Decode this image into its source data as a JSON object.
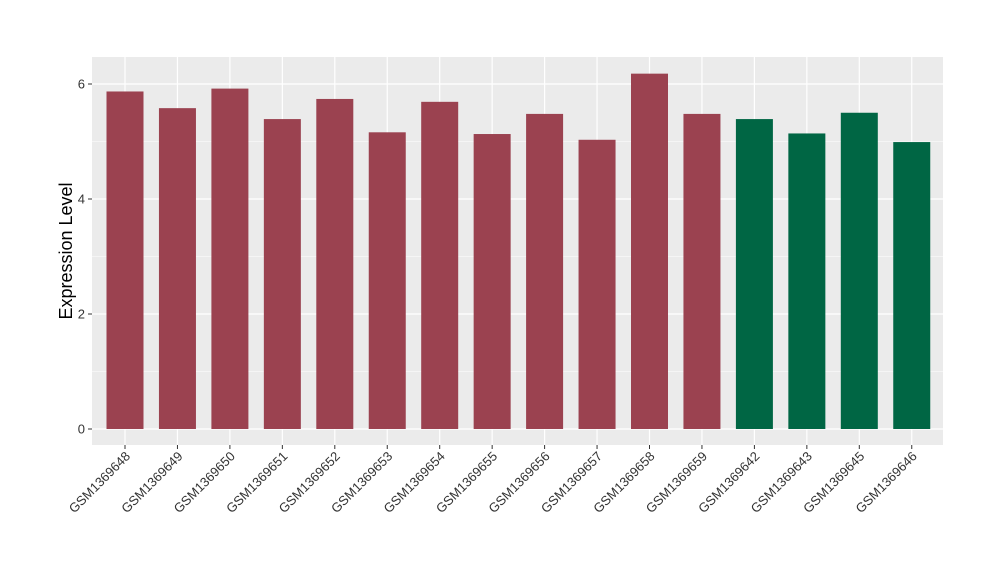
{
  "chart_data": {
    "type": "bar",
    "title": "",
    "xlabel": "",
    "ylabel": "Expression Level",
    "ylim": [
      0,
      6.3
    ],
    "yticks": [
      0,
      2,
      4,
      6
    ],
    "grid": true,
    "legend": "none",
    "colors": {
      "group_a": "#9b4250",
      "group_b": "#006644",
      "panel_bg": "#ebebeb",
      "grid": "#ffffff"
    },
    "categories": [
      "GSM1369648",
      "GSM1369649",
      "GSM1369650",
      "GSM1369651",
      "GSM1369652",
      "GSM1369653",
      "GSM1369654",
      "GSM1369655",
      "GSM1369656",
      "GSM1369657",
      "GSM1369658",
      "GSM1369659",
      "GSM1369642",
      "GSM1369643",
      "GSM1369645",
      "GSM1369646"
    ],
    "values": [
      5.87,
      5.58,
      5.92,
      5.39,
      5.74,
      5.16,
      5.69,
      5.13,
      5.48,
      5.03,
      6.18,
      5.48,
      5.39,
      5.14,
      5.5,
      4.99
    ],
    "groups": [
      "a",
      "a",
      "a",
      "a",
      "a",
      "a",
      "a",
      "a",
      "a",
      "a",
      "a",
      "a",
      "b",
      "b",
      "b",
      "b"
    ]
  }
}
